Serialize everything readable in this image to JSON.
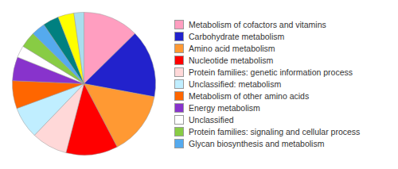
{
  "chart_data": {
    "type": "pie",
    "categories": [
      "Metabolism of cofactors and vitamins",
      "Carbohydrate metabolism",
      "Amino acid metabolism",
      "Nucleotide metabolism",
      "Protein families: genetic information process",
      "Unclassified: metabolism",
      "Metabolism of other amino acids",
      "Energy metabolism",
      "Unclassified",
      "Protein families: signaling and cellular process",
      "Glycan biosynthesis and metabolism",
      null,
      null,
      null
    ],
    "values": [
      14,
      17,
      16,
      13,
      9,
      8,
      7,
      6,
      3,
      4,
      3.5,
      4,
      4,
      2.5
    ],
    "colors": [
      "#FF9EC0",
      "#2222CC",
      "#FF9933",
      "#FF0000",
      "#FFD8D8",
      "#C0EEFF",
      "#FF6600",
      "#8833CC",
      "#FFFFFF",
      "#88CC44",
      "#55AAEE",
      "#008080",
      "#FFFF00",
      "#AADDEE"
    ],
    "legend": "right"
  }
}
